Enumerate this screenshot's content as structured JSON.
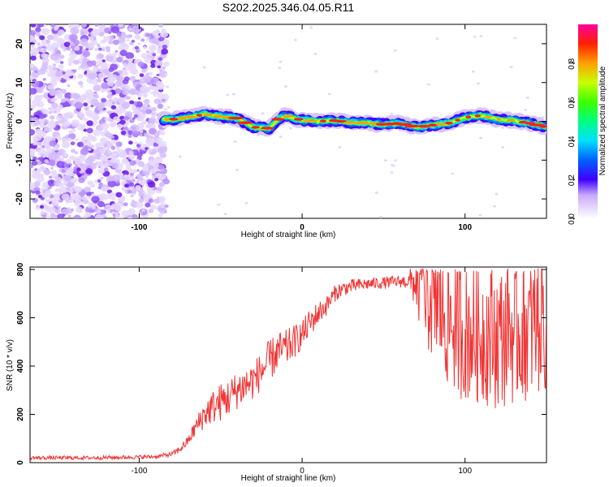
{
  "title": "S202.2025.346.04.05.R11",
  "colors": {
    "snr_line": "#f03434",
    "cloud": "#7a2cf0",
    "axis": "#000000"
  },
  "colorbar": {
    "label": "Normalized spectral amplitude",
    "ticks": [
      "0.0",
      "0.2",
      "0.4",
      "0.6",
      "0.8"
    ],
    "tick_values": [
      0.0,
      0.2,
      0.4,
      0.6,
      0.8
    ],
    "range": [
      0,
      1
    ]
  },
  "chart_data": [
    {
      "type": "heatmap",
      "title": "S202.2025.346.04.05.R11",
      "xlabel": "Height of straight line (km)",
      "ylabel": "Frequency (Hz)",
      "xlim": [
        -167,
        150
      ],
      "ylim": [
        -25,
        25
      ],
      "xticks": [
        -100,
        0,
        100
      ],
      "xtick_labels": [
        "-100",
        "0",
        "100"
      ],
      "yticks": [
        20,
        10,
        0,
        -10,
        -20
      ],
      "ytick_labels": [
        "20",
        "10",
        "0",
        "-10",
        "-20"
      ],
      "noise_region_x": [
        -167,
        -85
      ],
      "ridge": {
        "x": [
          -85,
          -80,
          -70,
          -60,
          -50,
          -40,
          -30,
          -20,
          -15,
          -10,
          -5,
          0,
          10,
          20,
          30,
          40,
          50,
          60,
          70,
          80,
          90,
          100,
          110,
          120,
          130,
          140,
          150
        ],
        "freq": [
          0.5,
          0.5,
          1.0,
          1.8,
          1.2,
          0.8,
          -1.5,
          -1.8,
          0.5,
          1.5,
          0.8,
          0.3,
          0.0,
          0.2,
          -0.3,
          -0.5,
          -0.8,
          -0.5,
          -1.5,
          -1.0,
          -0.5,
          1.0,
          1.5,
          0.5,
          0.2,
          -0.5,
          -1.5
        ]
      }
    },
    {
      "type": "line",
      "xlabel": "Height of straight line (km)",
      "ylabel": "SNR (10 * v/v)",
      "xlim": [
        -167,
        150
      ],
      "ylim": [
        0,
        810
      ],
      "xticks": [
        -100,
        0,
        100
      ],
      "xtick_labels": [
        "-100",
        "0",
        "100"
      ],
      "yticks": [
        0,
        200,
        400,
        600,
        800
      ],
      "ytick_labels": [
        "0",
        "200",
        "400",
        "600",
        "800"
      ],
      "series": [
        {
          "name": "SNR",
          "x": [
            -167,
            -150,
            -130,
            -110,
            -90,
            -80,
            -75,
            -70,
            -65,
            -60,
            -55,
            -50,
            -45,
            -40,
            -35,
            -30,
            -25,
            -20,
            -15,
            -10,
            -5,
            0,
            5,
            10,
            15,
            20,
            25,
            30,
            40,
            50,
            60,
            65,
            70,
            75,
            80,
            90,
            100,
            110,
            120,
            130,
            140,
            150
          ],
          "y": [
            20,
            20,
            20,
            22,
            25,
            35,
            55,
            90,
            150,
            200,
            230,
            250,
            270,
            300,
            320,
            340,
            380,
            420,
            460,
            470,
            500,
            530,
            580,
            620,
            650,
            700,
            720,
            730,
            740,
            745,
            750,
            750,
            745,
            720,
            700,
            600,
            550,
            540,
            520,
            540,
            560,
            580
          ],
          "spread": [
            8,
            8,
            8,
            8,
            8,
            10,
            15,
            20,
            40,
            60,
            70,
            80,
            80,
            80,
            80,
            80,
            80,
            90,
            80,
            80,
            70,
            60,
            60,
            50,
            40,
            35,
            30,
            30,
            25,
            25,
            25,
            30,
            120,
            250,
            280,
            300,
            300,
            300,
            300,
            300,
            300,
            300
          ]
        }
      ]
    }
  ]
}
